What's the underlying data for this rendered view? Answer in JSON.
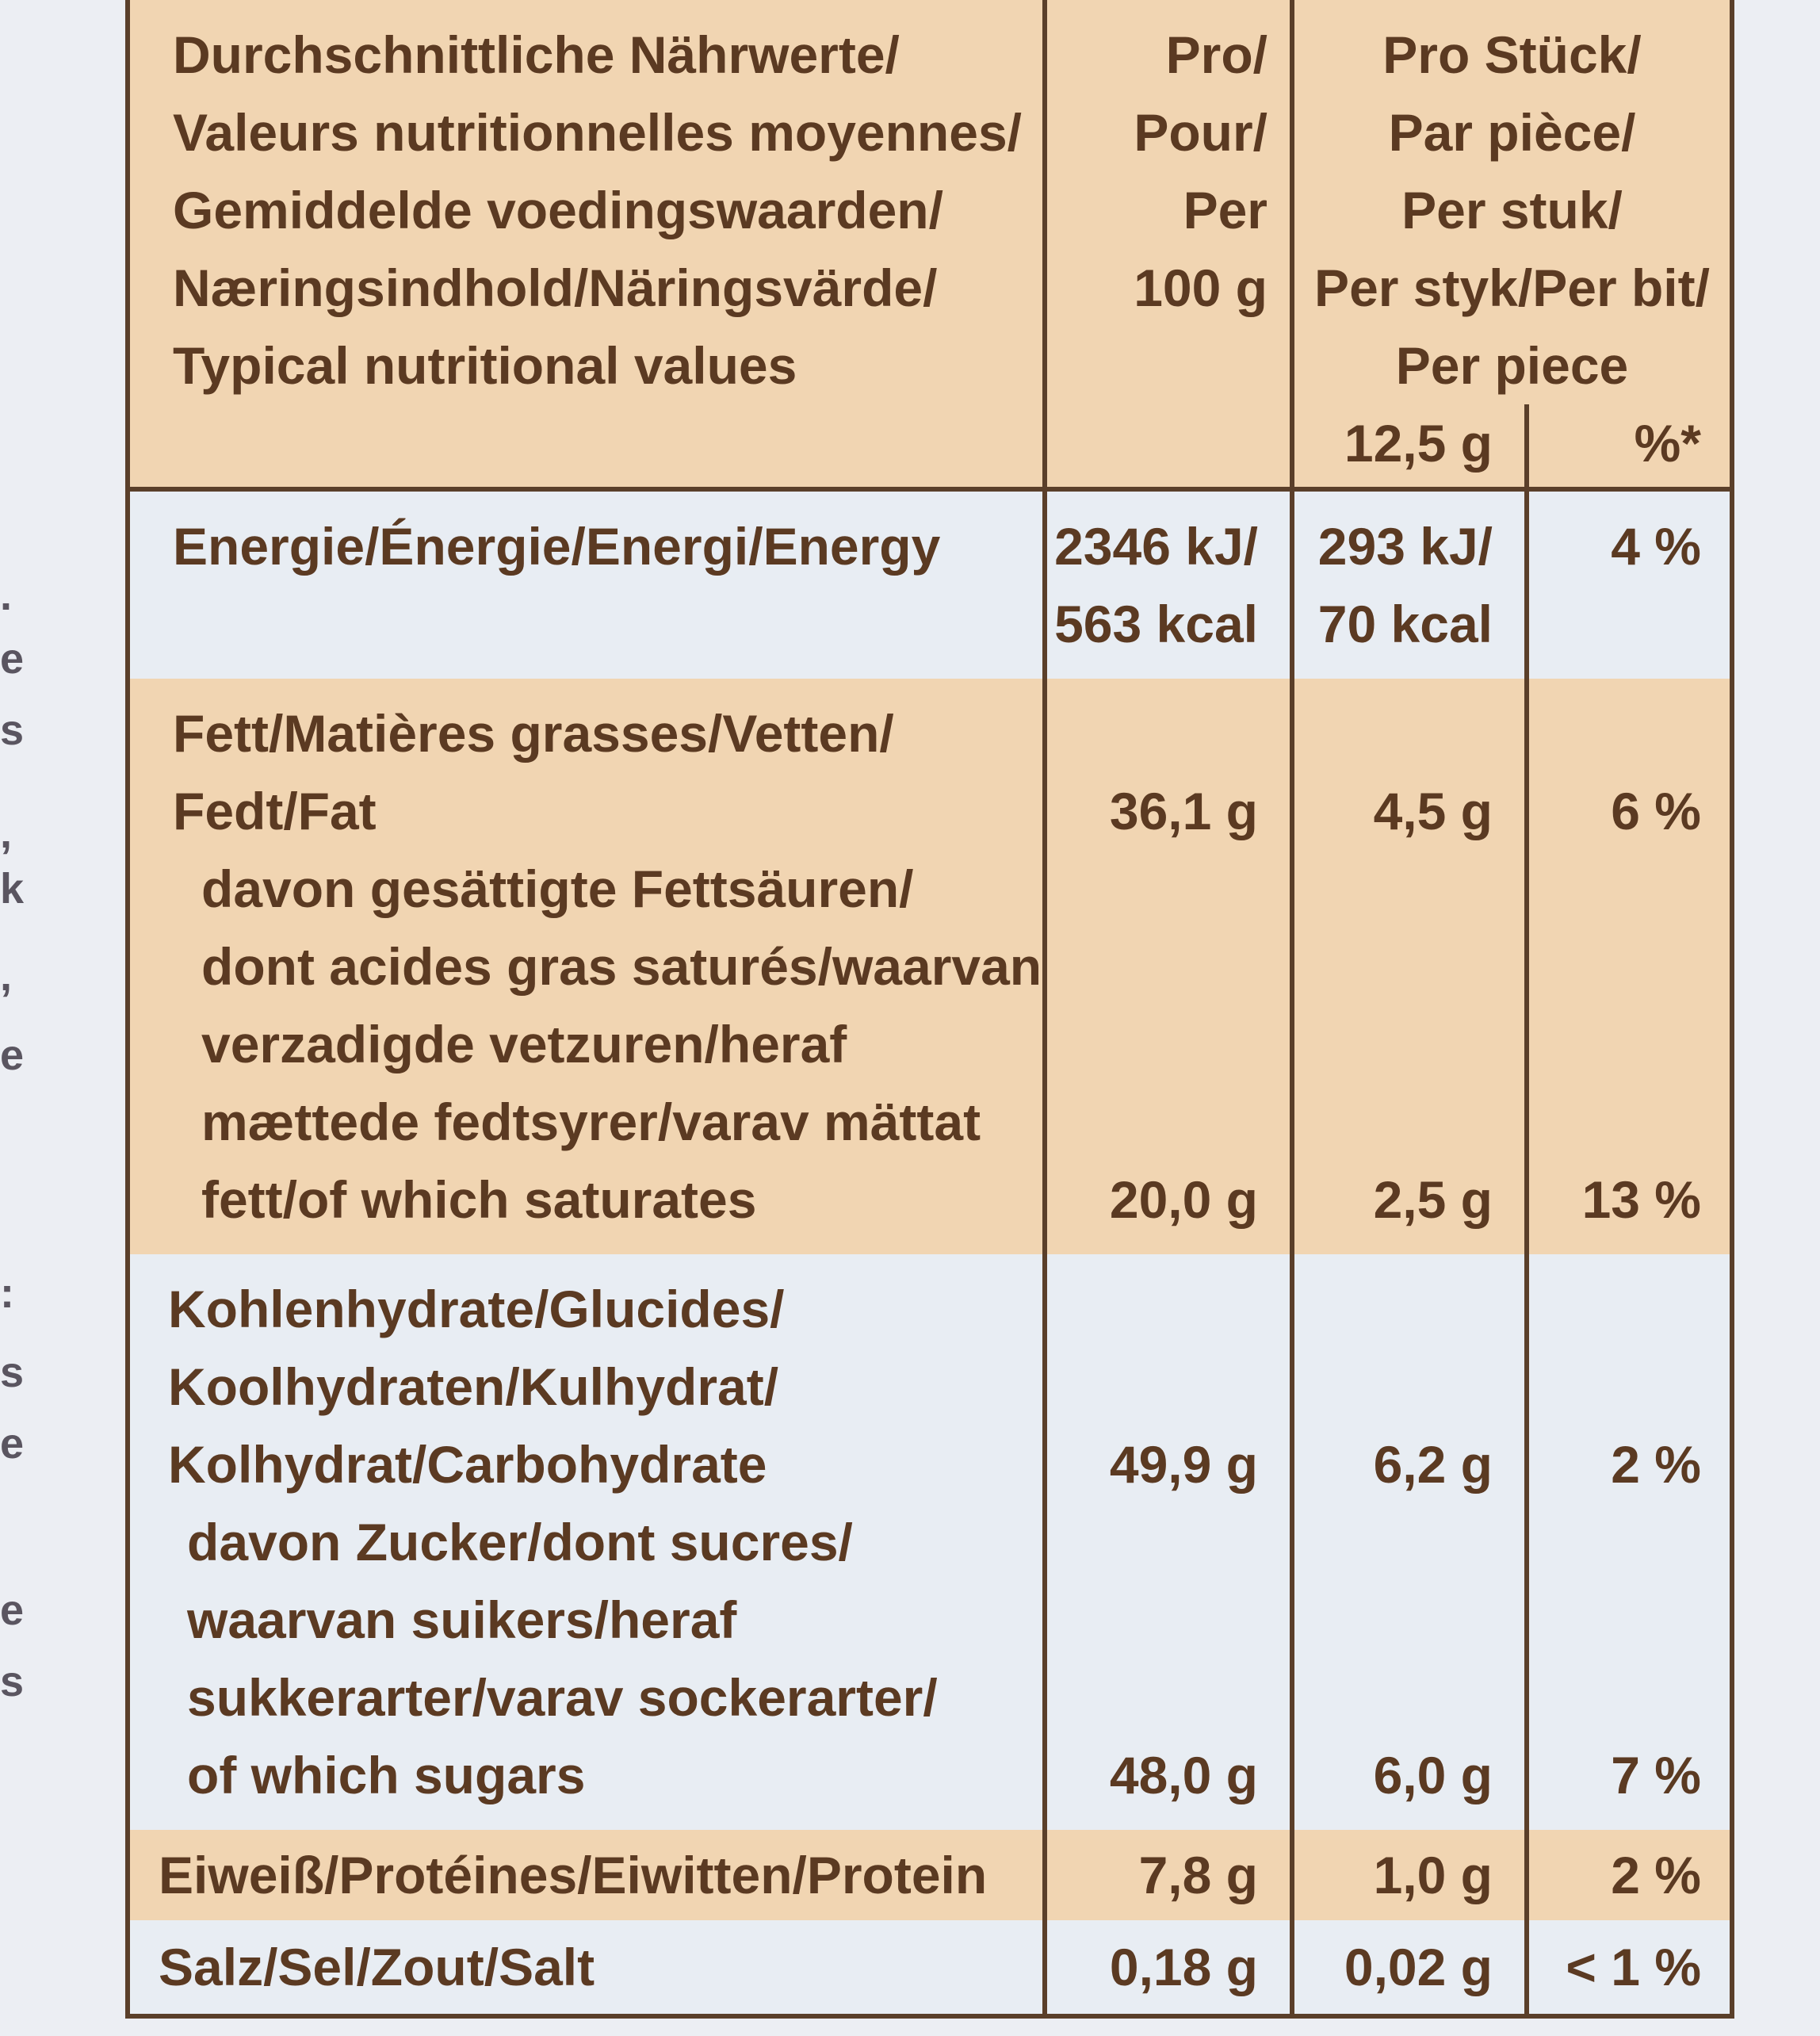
{
  "header": {
    "title_lines": "Durchschnittliche Nährwerte/\nValeurs nutritionnelles moyennes/\nGemiddelde voedingswaarden/\nNæringsindhold/Näringsvärde/\nTypical nutritional values",
    "per100_lines": "Pro/\nPour/\nPer\n100 g",
    "perpiece_lines": "Pro Stück/\nPar pièce/\nPer stuk/\nPer styk/Per bit/\nPer piece",
    "piece_weight": "12,5 g",
    "percent_symbol": "%*"
  },
  "rows": {
    "energy": {
      "label": "Energie/Énergie/Energi/Energy",
      "per100_kj": "2346 kJ/",
      "per100_kcal": "563 kcal",
      "piece_kj": "293 kJ/",
      "piece_kcal": "70 kcal",
      "pct": "4 %"
    },
    "fat": {
      "label": "Fett/Matières grasses/Vetten/\nFedt/Fat",
      "per100": "36,1 g",
      "piece": "4,5 g",
      "pct": "6 %"
    },
    "saturates": {
      "label": "davon gesättigte Fettsäuren/\ndont acides gras saturés/waarvan\nverzadigde vetzuren/heraf\nmættede fedtsyrer/varav mättat\nfett/of which saturates",
      "per100": "20,0 g",
      "piece": "2,5 g",
      "pct": "13 %"
    },
    "carbs": {
      "label": "Kohlenhydrate/Glucides/\nKoolhydraten/Kulhydrat/\nKolhydrat/Carbohydrate",
      "per100": "49,9 g",
      "piece": "6,2 g",
      "pct": "2 %"
    },
    "sugars": {
      "label": "davon Zucker/dont sucres/\nwaarvan suikers/heraf\nsukkerarter/varav sockerarter/\nof which sugars",
      "per100": "48,0 g",
      "piece": "6,0 g",
      "pct": "7 %"
    },
    "protein": {
      "label": "Eiweiß/Protéines/Eiwitten/Protein",
      "per100": "7,8 g",
      "piece": "1,0 g",
      "pct": "2 %"
    },
    "salt": {
      "label": "Salz/Sel/Zout/Salt",
      "per100": "0,18 g",
      "piece": "0,02 g",
      "pct": "< 1 %"
    }
  },
  "margin_glyphs": [
    ".",
    "e",
    "s",
    ",",
    "k",
    ",",
    "e",
    ":",
    "s",
    "e",
    "e",
    "s"
  ]
}
